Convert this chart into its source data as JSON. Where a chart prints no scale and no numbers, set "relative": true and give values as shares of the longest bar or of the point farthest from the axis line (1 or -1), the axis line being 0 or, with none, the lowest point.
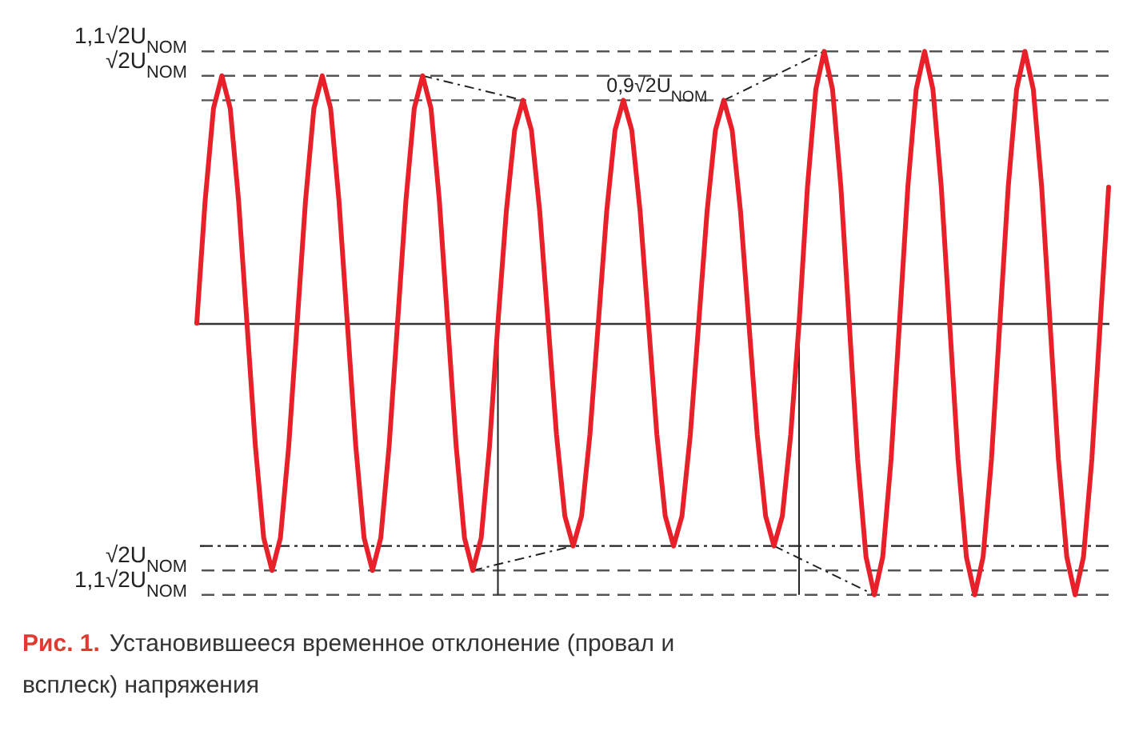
{
  "chart_data": {
    "type": "line",
    "title": "Рис. 1.",
    "subtitle": "Установившееся временное отклонение (провал и всплеск) напряжения",
    "categories": [
      null,
      null,
      null,
      null,
      null,
      null,
      null,
      null,
      null,
      null,
      null,
      null,
      null,
      null,
      null,
      null,
      null,
      null,
      null,
      null,
      null,
      null,
      null,
      null,
      null,
      null,
      null,
      null,
      null,
      null,
      null,
      null,
      null,
      null,
      null,
      null,
      null,
      null,
      null,
      null,
      null,
      null,
      null,
      null,
      null,
      null,
      null,
      null,
      null,
      null,
      null,
      null,
      null,
      null,
      null,
      null,
      null,
      null,
      null,
      null,
      null,
      null,
      null,
      null,
      null,
      null,
      null,
      null,
      null,
      null,
      null,
      null,
      null,
      null,
      null,
      null,
      null,
      null,
      null,
      null,
      null,
      null,
      null,
      null,
      null,
      null,
      null,
      null,
      null,
      null,
      null,
      null,
      null,
      null,
      null,
      null,
      null,
      null,
      null,
      null,
      null,
      null,
      null,
      null,
      null,
      null,
      null,
      null,
      null,
      null
    ],
    "relative": true,
    "ref_lines": [
      {
        "axis": "y",
        "value": 1,
        "label": "1,1√2U$_{NOM}$",
        "color": "#555555",
        "line_style": "dashed"
      },
      {
        "axis": "y",
        "value": 0.91,
        "label": "√2U$_{NOM}$",
        "color": "#555555",
        "line_style": "dashed"
      },
      {
        "axis": "y",
        "value": 0.82,
        "label": "0,9√2U$_{NOM}$",
        "color": "#555555",
        "line_style": "dashed"
      },
      {
        "axis": "y",
        "value": -0.82,
        "color": "#222222",
        "line_style": "dotted"
      },
      {
        "axis": "y",
        "value": -0.91,
        "label": "√2U$_{NOM}$",
        "color": "#555555",
        "line_style": "dashed"
      },
      {
        "axis": "y",
        "value": -1,
        "label": "1,1√2U$_{NOM}$",
        "color": "#555555",
        "line_style": "dashed"
      }
    ],
    "series": [
      {
        "color": "#e8202a",
        "line_style": "solid",
        "values": [
          0,
          0.45,
          0.79,
          0.91,
          0.79,
          0.45,
          0,
          -0.45,
          -0.79,
          -0.91,
          -0.79,
          -0.45,
          0,
          0.45,
          0.79,
          0.91,
          0.79,
          0.45,
          0,
          -0.45,
          -0.79,
          -0.91,
          -0.79,
          -0.45,
          0,
          0.45,
          0.79,
          0.91,
          0.79,
          0.45,
          0,
          -0.45,
          -0.79,
          -0.91,
          -0.79,
          -0.45,
          0,
          0.41,
          0.71,
          0.82,
          0.71,
          0.41,
          0,
          -0.41,
          -0.71,
          -0.82,
          -0.71,
          -0.41,
          0,
          0.41,
          0.71,
          0.82,
          0.71,
          0.41,
          0,
          -0.41,
          -0.71,
          -0.82,
          -0.71,
          -0.41,
          0,
          0.41,
          0.71,
          0.82,
          0.71,
          0.41,
          0,
          -0.41,
          -0.71,
          -0.82,
          -0.71,
          -0.41,
          0,
          0.5,
          0.86,
          1,
          0.86,
          0.5,
          0,
          -0.5,
          -0.86,
          -1,
          -0.86,
          -0.5,
          0,
          0.5,
          0.86,
          1,
          0.86,
          0.5,
          0,
          -0.5,
          -0.86,
          -1,
          -0.86,
          -0.5,
          0,
          0.5,
          0.86,
          1,
          0.86,
          0.5,
          0,
          -0.5,
          -0.86,
          -1,
          -0.86,
          -0.5,
          0,
          0.5
        ]
      }
    ]
  }
}
